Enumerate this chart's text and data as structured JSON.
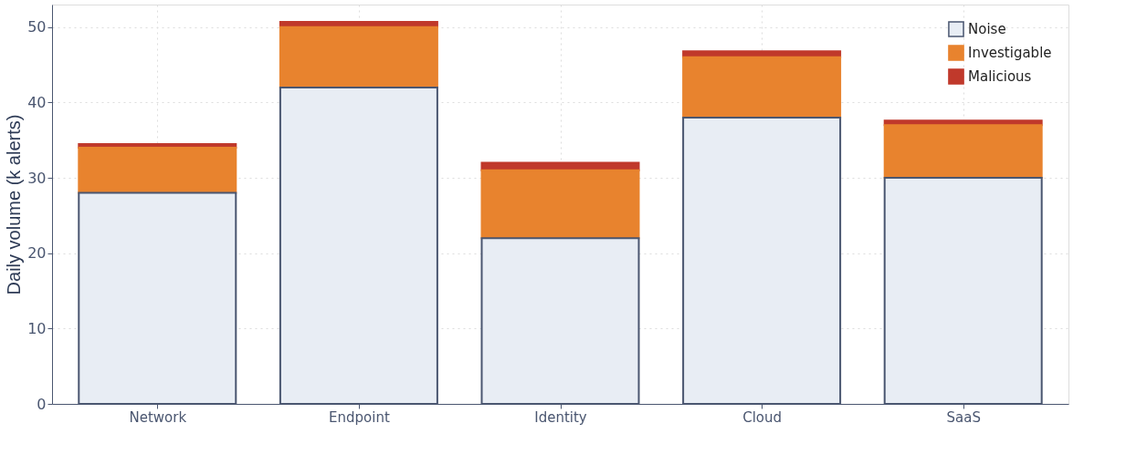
{
  "chart_data": {
    "type": "bar",
    "stacked": true,
    "ylabel": "Daily volume (k alerts)",
    "categories": [
      "Network",
      "Endpoint",
      "Identity",
      "Cloud",
      "SaaS"
    ],
    "series": [
      {
        "name": "Noise",
        "color": "#e8edf4",
        "values": [
          28,
          42,
          22,
          38,
          30
        ]
      },
      {
        "name": "Investigable",
        "color": "#e8832e",
        "values": [
          6,
          8,
          9,
          8,
          7
        ]
      },
      {
        "name": "Malicious",
        "color": "#c0392b",
        "values": [
          0.5,
          0.7,
          1.0,
          0.8,
          0.6
        ]
      }
    ],
    "ylim": [
      0,
      53
    ],
    "yticks": [
      0,
      10,
      20,
      30,
      40,
      50
    ],
    "grid": true,
    "legend": "top right"
  }
}
